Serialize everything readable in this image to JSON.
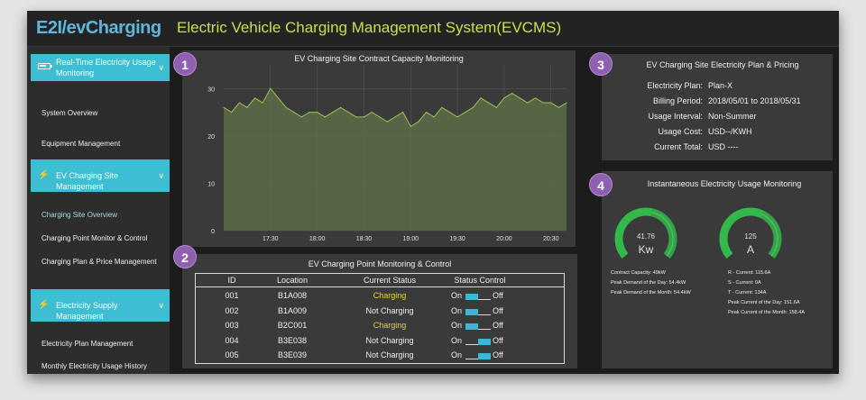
{
  "header": {
    "logo": "E2I/evCharging",
    "title": "Electric Vehicle Charging Management System(EVCMS)"
  },
  "sidebar": {
    "sections": [
      {
        "label": "Real-Time Electricity Usage Monitoring",
        "icon": "battery-icon"
      },
      {
        "label": "EV Charging Site Management",
        "icon": "plug-icon"
      },
      {
        "label": "Electricity Supply Management",
        "icon": "lightning-icon"
      }
    ],
    "items": [
      "System Overview",
      "Equipment Management",
      "Charging Site Overview",
      "Charging Point Monitor & Control",
      "Charging Plan & Price Management",
      "Electricity Plan Management",
      "Monthly Electricity Usage History"
    ]
  },
  "panels": {
    "capacity": {
      "badge": "1",
      "title": "EV Charging Site Contract Capacity Monitoring"
    },
    "points": {
      "badge": "2",
      "title": "EV Charging Point Monitoring & Control",
      "columns": [
        "ID",
        "Location",
        "Current Status",
        "Status Control"
      ],
      "on_label": "On",
      "off_label": "Off",
      "rows": [
        {
          "id": "001",
          "location": "B1A008",
          "status": "Charging",
          "state": "on"
        },
        {
          "id": "002",
          "location": "B1A009",
          "status": "Not Charging",
          "state": "on"
        },
        {
          "id": "003",
          "location": "B2C001",
          "status": "Charging",
          "state": "on"
        },
        {
          "id": "004",
          "location": "B3E038",
          "status": "Not Charging",
          "state": "off"
        },
        {
          "id": "005",
          "location": "B3E039",
          "status": "Not Charging",
          "state": "off"
        }
      ]
    },
    "plan": {
      "badge": "3",
      "title": "EV Charging Site Electricity Plan & Pricing",
      "rows": [
        {
          "label": "Electricity Plan:",
          "value": "Plan-X"
        },
        {
          "label": "Billing Period:",
          "value": "2018/05/01 to 2018/05/31"
        },
        {
          "label": "Usage Interval:",
          "value": "Non-Summer"
        },
        {
          "label": "Usage Cost:",
          "value": "USD--/KWH"
        },
        {
          "label": "Current Total:",
          "value": "USD ----"
        }
      ]
    },
    "usage": {
      "badge": "4",
      "title": "Instantaneous Electricity Usage Monitoring",
      "gauge1": {
        "value": "41.76",
        "unit": "Kw",
        "level": 0.55
      },
      "gauge2": {
        "value": "125",
        "unit": "A",
        "level": 0.6
      },
      "left_stats": [
        "Contract Capacity:  49kW",
        "Peak Demand of the Day:  54.4kW",
        "Peak Demand of the Month:  54.4kW"
      ],
      "right_stats": [
        "R - Current:  115.6A",
        "S - Current:  0A",
        "T - Current:  134A",
        "Peak Current of the Day:  151.6A",
        "Peak Current of the Month:  158.4A"
      ]
    }
  },
  "colors": {
    "accent": "#3dbed3",
    "title": "#c6e14a",
    "charging": "#e8d23a",
    "gauge": "#33b84a",
    "badge": "#8f5fb0"
  },
  "chart_data": {
    "type": "area",
    "title": "EV Charging Site Contract Capacity Monitoring",
    "x_ticks": [
      "17:30",
      "18:00",
      "18:30",
      "19:00",
      "19:30",
      "20:00",
      "20:30"
    ],
    "y_ticks": [
      "0",
      "10",
      "20",
      "30"
    ],
    "ylim": [
      0,
      35
    ],
    "x_range": [
      "17:00",
      "20:40"
    ],
    "grid": true,
    "series": [
      {
        "x": [
          "17:00",
          "17:05",
          "17:10",
          "17:15",
          "17:20",
          "17:25",
          "17:30",
          "17:35",
          "17:40",
          "17:45",
          "17:50",
          "17:55",
          "18:00",
          "18:05",
          "18:10",
          "18:15",
          "18:20",
          "18:25",
          "18:30",
          "18:35",
          "18:40",
          "18:45",
          "18:50",
          "18:55",
          "19:00",
          "19:05",
          "19:10",
          "19:15",
          "19:20",
          "19:25",
          "19:30",
          "19:35",
          "19:40",
          "19:45",
          "19:50",
          "19:55",
          "20:00",
          "20:05",
          "20:10",
          "20:15",
          "20:20",
          "20:25",
          "20:30",
          "20:35",
          "20:40"
        ],
        "values": [
          26,
          25,
          27,
          26,
          28,
          27,
          30,
          28,
          26,
          25,
          24,
          25,
          25,
          24,
          25,
          26,
          25,
          24,
          24,
          25,
          24,
          23,
          24,
          25,
          22,
          23,
          25,
          24,
          26,
          25,
          24,
          25,
          26,
          28,
          27,
          26,
          28,
          29,
          28,
          27,
          28,
          27,
          27,
          26,
          27
        ]
      }
    ]
  }
}
